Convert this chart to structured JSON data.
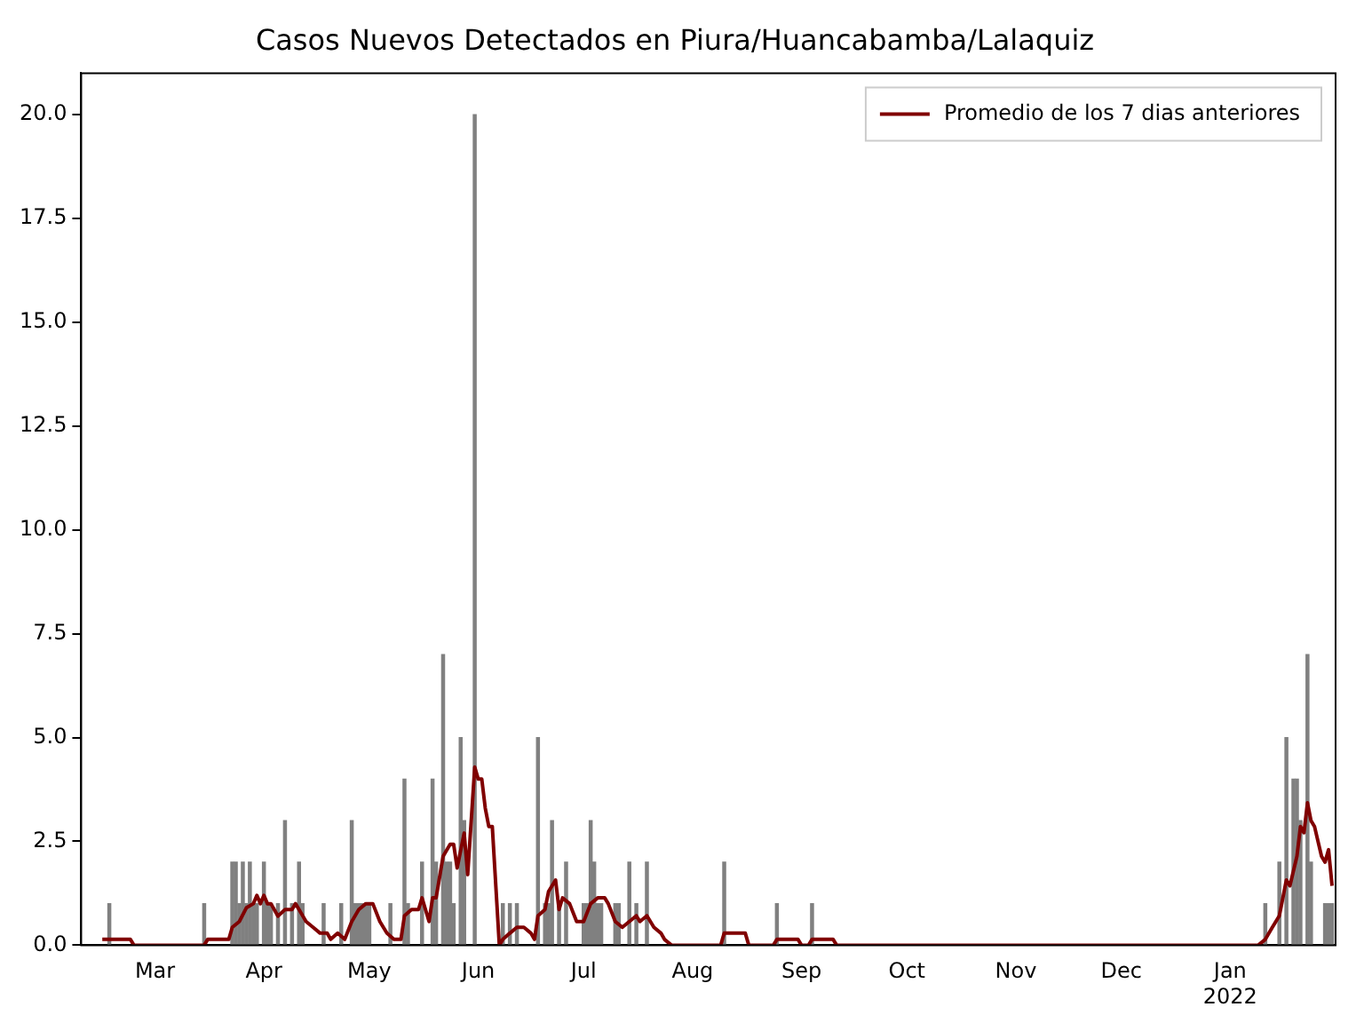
{
  "chart_data": {
    "type": "bar",
    "title": "Casos Nuevos Detectados en Piura/Huancabamba/Lalaquiz",
    "xlim": [
      "2021-02-08",
      "2022-01-31"
    ],
    "xticks": [
      {
        "value": "2021-03-01",
        "label": "Mar"
      },
      {
        "value": "2021-04-01",
        "label": "Apr"
      },
      {
        "value": "2021-05-01",
        "label": "May"
      },
      {
        "value": "2021-06-01",
        "label": "Jun"
      },
      {
        "value": "2021-07-01",
        "label": "Jul"
      },
      {
        "value": "2021-08-01",
        "label": "Aug"
      },
      {
        "value": "2021-09-01",
        "label": "Sep"
      },
      {
        "value": "2021-10-01",
        "label": "Oct"
      },
      {
        "value": "2021-11-01",
        "label": "Nov"
      },
      {
        "value": "2021-12-01",
        "label": "Dec"
      },
      {
        "value": "2022-01-01",
        "label": "Jan\n2022"
      }
    ],
    "ylim": [
      0,
      21
    ],
    "yticks": [
      {
        "value": 0,
        "label": "0.0"
      },
      {
        "value": 2.5,
        "label": "2.5"
      },
      {
        "value": 5,
        "label": "5.0"
      },
      {
        "value": 7.5,
        "label": "7.5"
      },
      {
        "value": 10,
        "label": "10.0"
      },
      {
        "value": 12.5,
        "label": "12.5"
      },
      {
        "value": 15,
        "label": "15.0"
      },
      {
        "value": 17.5,
        "label": "17.5"
      },
      {
        "value": 20,
        "label": "20.0"
      }
    ],
    "grid": false,
    "legend": "top right",
    "series": [
      {
        "color": "#808080",
        "x": [
          "2021-02-16",
          "2021-03-15",
          "2021-03-23",
          "2021-03-24",
          "2021-03-25",
          "2021-03-26",
          "2021-03-27",
          "2021-03-28",
          "2021-03-29",
          "2021-03-30",
          "2021-04-01",
          "2021-04-02",
          "2021-04-03",
          "2021-04-05",
          "2021-04-07",
          "2021-04-09",
          "2021-04-11",
          "2021-04-12",
          "2021-04-18",
          "2021-04-23",
          "2021-04-26",
          "2021-04-27",
          "2021-04-28",
          "2021-04-29",
          "2021-04-30",
          "2021-05-01",
          "2021-05-07",
          "2021-05-11",
          "2021-05-12",
          "2021-05-16",
          "2021-05-19",
          "2021-05-20",
          "2021-05-22",
          "2021-05-23",
          "2021-05-24",
          "2021-05-25",
          "2021-05-27",
          "2021-05-28",
          "2021-05-31",
          "2021-06-08",
          "2021-06-10",
          "2021-06-12",
          "2021-06-18",
          "2021-06-20",
          "2021-06-21",
          "2021-06-22",
          "2021-06-24",
          "2021-06-26",
          "2021-07-01",
          "2021-07-02",
          "2021-07-03",
          "2021-07-04",
          "2021-07-05",
          "2021-07-06",
          "2021-07-10",
          "2021-07-11",
          "2021-07-14",
          "2021-07-16",
          "2021-07-19",
          "2021-08-10",
          "2021-08-25",
          "2021-09-04",
          "2022-01-11",
          "2022-01-15",
          "2022-01-17",
          "2022-01-19",
          "2022-01-20",
          "2022-01-21",
          "2022-01-23",
          "2022-01-24",
          "2022-01-28",
          "2022-01-29",
          "2022-01-30"
        ],
        "values": [
          1,
          1,
          2,
          2,
          1,
          2,
          1,
          2,
          1,
          1,
          2,
          1,
          1,
          1,
          3,
          1,
          2,
          1,
          1,
          1,
          3,
          1,
          1,
          1,
          1,
          1,
          1,
          4,
          1,
          2,
          4,
          2,
          7,
          2,
          2,
          1,
          5,
          3,
          20,
          1,
          1,
          1,
          5,
          1,
          1,
          3,
          1,
          2,
          1,
          1,
          3,
          2,
          1,
          1,
          1,
          1,
          2,
          1,
          2,
          2,
          1,
          1,
          1,
          2,
          5,
          4,
          4,
          3,
          7,
          2,
          1,
          1,
          1
        ]
      },
      {
        "type": "line",
        "name": "Promedio de los 7 dias anteriores",
        "color": "#800000",
        "x": [
          "2021-02-14",
          "2021-02-22",
          "2021-02-23",
          "2021-03-15",
          "2021-03-16",
          "2021-03-22",
          "2021-03-23",
          "2021-03-25",
          "2021-03-27",
          "2021-03-29",
          "2021-03-30",
          "2021-03-31",
          "2021-04-01",
          "2021-04-02",
          "2021-04-03",
          "2021-04-05",
          "2021-04-07",
          "2021-04-09",
          "2021-04-10",
          "2021-04-11",
          "2021-04-13",
          "2021-04-15",
          "2021-04-17",
          "2021-04-19",
          "2021-04-20",
          "2021-04-22",
          "2021-04-24",
          "2021-04-26",
          "2021-04-28",
          "2021-04-30",
          "2021-05-02",
          "2021-05-04",
          "2021-05-06",
          "2021-05-08",
          "2021-05-10",
          "2021-05-11",
          "2021-05-13",
          "2021-05-15",
          "2021-05-16",
          "2021-05-18",
          "2021-05-19",
          "2021-05-20",
          "2021-05-22",
          "2021-05-24",
          "2021-05-25",
          "2021-05-26",
          "2021-05-28",
          "2021-05-29",
          "2021-05-31",
          "2021-06-01",
          "2021-06-02",
          "2021-06-03",
          "2021-06-04",
          "2021-06-05",
          "2021-06-07",
          "2021-06-08",
          "2021-06-10",
          "2021-06-12",
          "2021-06-14",
          "2021-06-16",
          "2021-06-17",
          "2021-06-18",
          "2021-06-20",
          "2021-06-21",
          "2021-06-23",
          "2021-06-24",
          "2021-06-25",
          "2021-06-27",
          "2021-06-29",
          "2021-07-01",
          "2021-07-03",
          "2021-07-05",
          "2021-07-07",
          "2021-07-08",
          "2021-07-10",
          "2021-07-12",
          "2021-07-14",
          "2021-07-16",
          "2021-07-17",
          "2021-07-19",
          "2021-07-21",
          "2021-07-23",
          "2021-07-24",
          "2021-07-26",
          "2021-08-09",
          "2021-08-10",
          "2021-08-16",
          "2021-08-17",
          "2021-08-24",
          "2021-08-25",
          "2021-08-31",
          "2021-09-01",
          "2021-09-03",
          "2021-09-04",
          "2021-09-10",
          "2021-09-11",
          "2022-01-09",
          "2022-01-11",
          "2022-01-13",
          "2022-01-15",
          "2022-01-17",
          "2022-01-18",
          "2022-01-20",
          "2022-01-21",
          "2022-01-22",
          "2022-01-23",
          "2022-01-24",
          "2022-01-25",
          "2022-01-27",
          "2022-01-28",
          "2022-01-29",
          "2022-01-30"
        ],
        "values": [
          0.14,
          0.14,
          0,
          0,
          0.14,
          0.14,
          0.43,
          0.57,
          0.9,
          1.0,
          1.2,
          1.0,
          1.2,
          1.0,
          1.0,
          0.7,
          0.86,
          0.86,
          1.0,
          0.86,
          0.57,
          0.43,
          0.29,
          0.29,
          0.14,
          0.29,
          0.14,
          0.57,
          0.86,
          1.0,
          1.0,
          0.57,
          0.29,
          0.14,
          0.14,
          0.71,
          0.86,
          0.86,
          1.14,
          0.57,
          1.14,
          1.14,
          2.14,
          2.43,
          2.43,
          1.86,
          2.7,
          1.7,
          4.29,
          4.0,
          4.0,
          3.3,
          2.86,
          2.86,
          0,
          0.14,
          0.29,
          0.43,
          0.43,
          0.29,
          0.14,
          0.71,
          0.86,
          1.29,
          1.57,
          0.86,
          1.14,
          1.0,
          0.57,
          0.57,
          1.0,
          1.14,
          1.14,
          1.0,
          0.57,
          0.43,
          0.57,
          0.71,
          0.57,
          0.71,
          0.43,
          0.29,
          0.14,
          0,
          0,
          0.29,
          0.29,
          0,
          0,
          0.14,
          0.14,
          0,
          0,
          0.14,
          0.14,
          0,
          0,
          0.14,
          0.43,
          0.71,
          1.57,
          1.43,
          2.14,
          2.86,
          2.71,
          3.43,
          3.0,
          2.86,
          2.14,
          2.0,
          2.3,
          1.43
        ]
      }
    ]
  }
}
